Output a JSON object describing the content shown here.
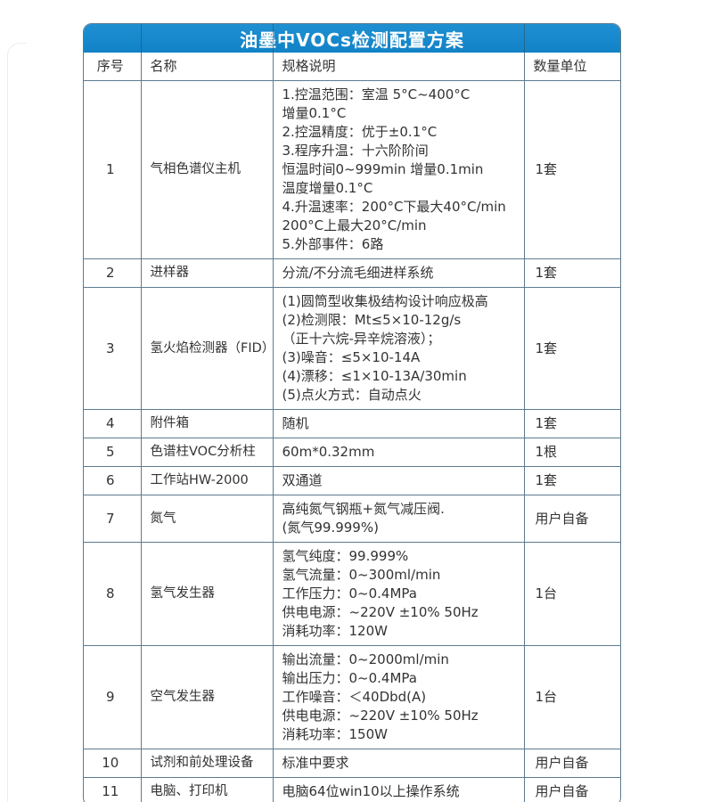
{
  "title": "油墨中VOCs检测配置方案",
  "colors": {
    "banner_blue": "#1e90d2",
    "banner_blue_dark": "#1282c6",
    "grid_border": "#5d7b8f",
    "body_text": "#333333",
    "title_text": "#ffffff"
  },
  "table": {
    "headers": [
      "序号",
      "名称",
      "规格说明",
      "数量单位"
    ],
    "rows": [
      {
        "no": "1",
        "name": "气相色谱仪主机",
        "spec": [
          "1.控温范围：室温 5°C~400°C",
          "增量0.1°C",
          "2.控温精度：优于±0.1°C",
          "3.程序升温：十六阶阶间",
          "恒温时间0~999min 增量0.1min",
          "温度增量0.1°C",
          "4.升温速率：200°C下最大40°C/min",
          "200°C上最大20°C/min",
          "5.外部事件：6路"
        ],
        "qty": "1套"
      },
      {
        "no": "2",
        "name": "进样器",
        "spec": [
          "分流/不分流毛细进样系统"
        ],
        "qty": "1套"
      },
      {
        "no": "3",
        "name": "氢火焰检测器（FID）",
        "spec": [
          "(1)圆筒型收集极结构设计响应极高",
          "(2)检测限：Mt≤5×10-12g/s",
          "（正十六烷-异辛烷溶液）；",
          "(3)噪音：≤5×10-14A",
          "(4)漂移：≤1×10-13A/30min",
          "(5)点火方式：自动点火"
        ],
        "qty": "1套"
      },
      {
        "no": "4",
        "name": "附件箱",
        "spec": [
          "随机"
        ],
        "qty": "1套"
      },
      {
        "no": "5",
        "name": "色谱柱VOC分析柱",
        "spec": [
          "60m*0.32mm"
        ],
        "qty": "1根"
      },
      {
        "no": "6",
        "name": "工作站HW-2000",
        "spec": [
          "双通道"
        ],
        "qty": "1套"
      },
      {
        "no": "7",
        "name": "氮气",
        "spec": [
          "高纯氮气钢瓶+氮气减压阀.",
          "(氮气99.999%)"
        ],
        "qty": "用户自备"
      },
      {
        "no": "8",
        "name": "氢气发生器",
        "spec": [
          "氢气纯度：99.999%",
          "氢气流量：0~300ml/min",
          "工作压力：0~0.4MPa",
          "供电电源：~220V ±10% 50Hz",
          "消耗功率：120W"
        ],
        "qty": "1台"
      },
      {
        "no": "9",
        "name": "空气发生器",
        "spec": [
          "输出流量：0~2000ml/min",
          "输出压力：0~0.4MPa",
          "工作噪音：＜40Dbd(A)",
          "供电电源：~220V ±10% 50Hz",
          "消耗功率：150W"
        ],
        "qty": "1台"
      },
      {
        "no": "10",
        "name": "试剂和前处理设备",
        "spec": [
          "标准中要求"
        ],
        "qty": "用户自备"
      },
      {
        "no": "11",
        "name": "电脑、打印机",
        "spec": [
          "电脑64位win10以上操作系统"
        ],
        "qty": "用户自备"
      }
    ]
  }
}
